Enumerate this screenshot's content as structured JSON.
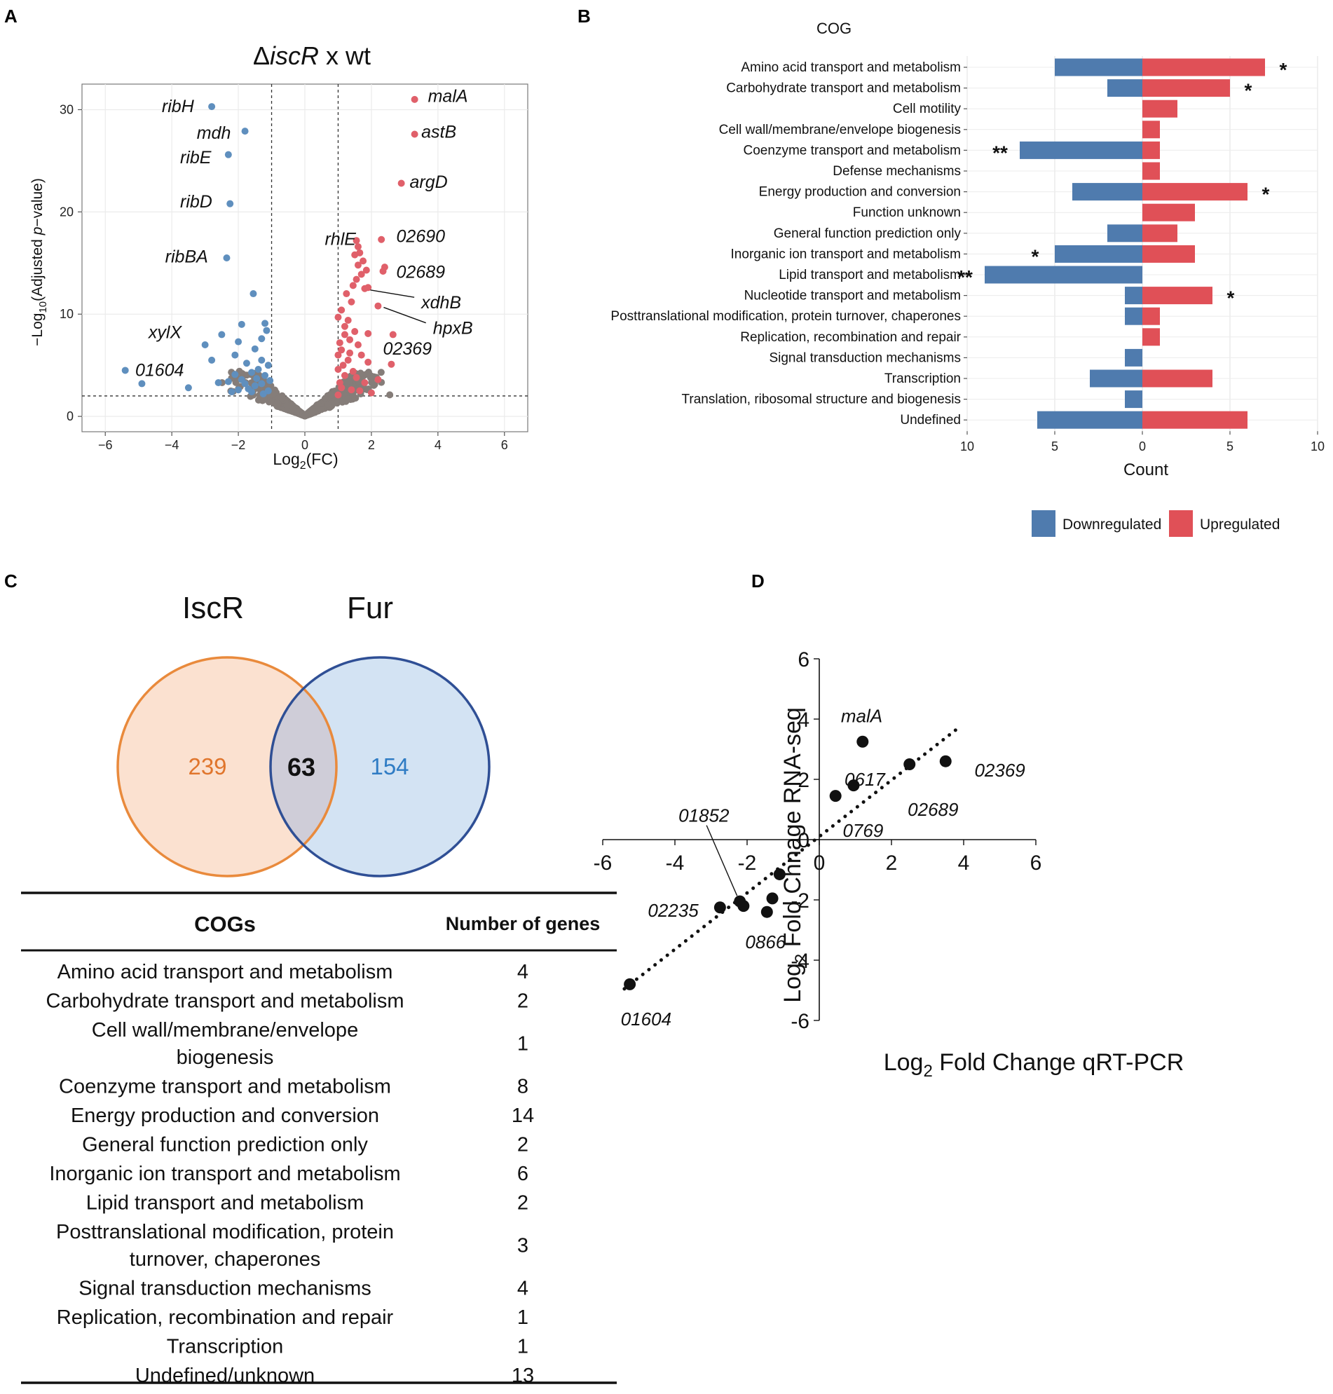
{
  "panels": {
    "A": "A",
    "B": "B",
    "C": "C",
    "D": "D"
  },
  "chart_data": [
    {
      "id": "A",
      "type": "scatter",
      "title_delta": "Δ",
      "title_gene": "iscR",
      "title_rest": " x wt",
      "xlabel_pre": "Log",
      "xlabel_sub": "2",
      "xlabel_post": "(FC)",
      "ylabel_pre": "−Log",
      "ylabel_sub": "10",
      "ylabel_mid": "(Adjusted ",
      "ylabel_it": "p",
      "ylabel_post": "−value)",
      "xlim": [
        -6.7,
        6.7
      ],
      "ylim": [
        -1.5,
        32.5
      ],
      "xticks": [
        -6,
        -4,
        -2,
        0,
        2,
        4,
        6
      ],
      "xtick_labels": [
        "−6",
        "−4",
        "−2",
        "0",
        "2",
        "4",
        "6"
      ],
      "yticks": [
        0,
        10,
        20,
        30
      ],
      "ytick_labels": [
        "0",
        "10",
        "20",
        "30"
      ],
      "fc_threshold": [
        -1,
        1
      ],
      "p_threshold": 2,
      "colors": {
        "down": "#5f8fbe",
        "up": "#e0606a",
        "ns": "#857d79"
      },
      "labeled_points": [
        {
          "gene": "ribH",
          "x": -2.8,
          "y": 30.3,
          "group": "down",
          "lx": -4.3,
          "ly": 30.3
        },
        {
          "gene": "mdh",
          "x": -1.8,
          "y": 27.9,
          "group": "down",
          "lx": -3.25,
          "ly": 27.7
        },
        {
          "gene": "ribE",
          "x": -2.3,
          "y": 25.6,
          "group": "down",
          "lx": -3.75,
          "ly": 25.3
        },
        {
          "gene": "ribD",
          "x": -2.25,
          "y": 20.8,
          "group": "down",
          "lx": -3.75,
          "ly": 21.0
        },
        {
          "gene": "ribBA",
          "x": -2.35,
          "y": 15.5,
          "group": "down",
          "lx": -4.2,
          "ly": 15.6
        },
        {
          "gene": "xylX",
          "x": -2.5,
          "y": 8.0,
          "group": "down",
          "lx": -4.7,
          "ly": 8.2
        },
        {
          "gene": "01604",
          "x": -5.4,
          "y": 4.5,
          "group": "down",
          "lx": -5.1,
          "ly": 4.5
        },
        {
          "gene": "malA",
          "x": 3.3,
          "y": 31.0,
          "group": "up",
          "lx": 3.7,
          "ly": 31.3
        },
        {
          "gene": "astB",
          "x": 3.3,
          "y": 27.6,
          "group": "up",
          "lx": 3.5,
          "ly": 27.8
        },
        {
          "gene": "argD",
          "x": 2.9,
          "y": 22.8,
          "group": "up",
          "lx": 3.15,
          "ly": 22.9
        },
        {
          "gene": "rhlE",
          "x": 1.55,
          "y": 17.2,
          "group": "up",
          "lx": 0.6,
          "ly": 17.3
        },
        {
          "gene": "02690",
          "x": 2.3,
          "y": 17.3,
          "group": "up",
          "lx": 2.75,
          "ly": 17.6
        },
        {
          "gene": "02689",
          "x": 2.4,
          "y": 14.6,
          "group": "up",
          "lx": 2.75,
          "ly": 14.1
        },
        {
          "gene": "xdhB",
          "x": 1.8,
          "y": 12.5,
          "group": "up",
          "lx": 3.5,
          "ly": 11.1,
          "arrow": true
        },
        {
          "gene": "hpxB",
          "x": 2.2,
          "y": 10.8,
          "group": "up",
          "lx": 3.85,
          "ly": 8.6,
          "arrow": true
        },
        {
          "gene": "02369",
          "x": 2.65,
          "y": 8.0,
          "group": "up",
          "lx": 2.35,
          "ly": 6.6
        }
      ],
      "down_points": [
        [
          -1.55,
          12
        ],
        [
          -1.2,
          9.1
        ],
        [
          -1.15,
          8.4
        ],
        [
          -1.3,
          7.6
        ],
        [
          -1.5,
          6.6
        ],
        [
          -1.3,
          5.5
        ],
        [
          -1.1,
          5.0
        ],
        [
          -1.4,
          4.6
        ],
        [
          -1.6,
          4.3
        ],
        [
          -1.2,
          4.0
        ],
        [
          -1.05,
          3.5
        ],
        [
          -1.3,
          3.2
        ],
        [
          -1.5,
          3.0
        ],
        [
          -1.7,
          2.7
        ],
        [
          -1.1,
          2.5
        ],
        [
          -1.25,
          2.2
        ],
        [
          -1.9,
          3.6
        ],
        [
          -2.1,
          4.1
        ],
        [
          -2.3,
          3.4
        ],
        [
          -2.0,
          2.6
        ],
        [
          -2.6,
          3.3
        ],
        [
          -2.8,
          5.5
        ],
        [
          -2.1,
          6.0
        ],
        [
          -1.9,
          9.0
        ],
        [
          -2.0,
          7.3
        ],
        [
          -3.0,
          7.0
        ],
        [
          -3.5,
          2.8
        ],
        [
          -4.9,
          3.2
        ],
        [
          -1.8,
          3.2
        ],
        [
          -1.6,
          2.4
        ],
        [
          -2.2,
          2.4
        ],
        [
          -1.75,
          5.2
        ],
        [
          -1.45,
          3.7
        ]
      ],
      "up_points": [
        [
          1.0,
          2.1
        ],
        [
          1.1,
          2.8
        ],
        [
          1.05,
          3.3
        ],
        [
          1.2,
          4.0
        ],
        [
          1.0,
          4.6
        ],
        [
          1.15,
          5.0
        ],
        [
          1.3,
          5.5
        ],
        [
          1.0,
          6.0
        ],
        [
          1.1,
          6.5
        ],
        [
          1.05,
          7.2
        ],
        [
          1.2,
          8.0
        ],
        [
          1.35,
          7.5
        ],
        [
          1.5,
          8.3
        ],
        [
          1.6,
          7.0
        ],
        [
          1.7,
          6.0
        ],
        [
          1.45,
          4.4
        ],
        [
          1.55,
          3.8
        ],
        [
          1.8,
          3.3
        ],
        [
          1.4,
          2.6
        ],
        [
          1.65,
          2.5
        ],
        [
          2.0,
          2.3
        ],
        [
          2.2,
          3.6
        ],
        [
          1.9,
          5.3
        ],
        [
          1.3,
          9.4
        ],
        [
          1.4,
          11.2
        ],
        [
          1.9,
          12.6
        ],
        [
          1.25,
          12.0
        ],
        [
          1.45,
          12.8
        ],
        [
          1.55,
          13.4
        ],
        [
          1.7,
          13.9
        ],
        [
          1.85,
          14.3
        ],
        [
          1.6,
          14.8
        ],
        [
          1.75,
          15.2
        ],
        [
          1.5,
          15.8
        ],
        [
          1.65,
          16.0
        ],
        [
          1.6,
          16.6
        ],
        [
          2.35,
          14.2
        ],
        [
          1.0,
          9.7
        ],
        [
          1.1,
          10.4
        ],
        [
          1.2,
          8.8
        ],
        [
          2.6,
          5.1
        ],
        [
          1.35,
          6.2
        ],
        [
          1.9,
          8.1
        ]
      ]
    },
    {
      "id": "B",
      "type": "bar",
      "title": "COG",
      "xlabel": "Count",
      "xlim": [
        -10,
        10
      ],
      "xticks": [
        -10,
        -5,
        0,
        5,
        10
      ],
      "xtick_labels": [
        "10",
        "5",
        "0",
        "5",
        "10"
      ],
      "categories": [
        "Amino acid transport and metabolism",
        "Carbohydrate transport and metabolism",
        "Cell motility",
        "Cell wall/membrane/envelope biogenesis",
        "Coenzyme transport and metabolism",
        "Defense mechanisms",
        "Energy production and conversion",
        "Function unknown",
        "General function prediction only",
        "Inorganic ion transport and metabolism",
        "Lipid transport and metabolism",
        "Nucleotide transport and metabolism",
        "Posttranslational modification, protein turnover, chaperones",
        "Replication, recombination and repair",
        "Signal transduction mechanisms",
        "Transcription",
        "Translation, ribosomal structure and biogenesis",
        "Undefined"
      ],
      "series": [
        {
          "name": "Downregulated",
          "color": "#4f7bae",
          "values": [
            5,
            2,
            0,
            0,
            7,
            0,
            4,
            0,
            2,
            5,
            9,
            1,
            1,
            0,
            1,
            3,
            1,
            6
          ]
        },
        {
          "name": "Upregulated",
          "color": "#e05057",
          "values": [
            7,
            5,
            2,
            1,
            1,
            1,
            6,
            3,
            2,
            3,
            0,
            4,
            1,
            1,
            0,
            4,
            0,
            6
          ]
        }
      ],
      "annotations": [
        {
          "category_index": 0,
          "side": "up",
          "text": "*"
        },
        {
          "category_index": 1,
          "side": "up",
          "text": "*"
        },
        {
          "category_index": 4,
          "side": "down",
          "text": "**"
        },
        {
          "category_index": 6,
          "side": "up",
          "text": "*"
        },
        {
          "category_index": 9,
          "side": "down",
          "text": "*"
        },
        {
          "category_index": 10,
          "side": "down",
          "text": "**"
        },
        {
          "category_index": 11,
          "side": "up",
          "text": "*"
        }
      ]
    },
    {
      "id": "D",
      "type": "scatter",
      "xlabel_pre": "Log",
      "xlabel_sub": "2",
      "xlabel_post": " Fold  Change qRT-PCR",
      "ylabel_pre": "Log",
      "ylabel_sub": "2",
      "ylabel_post": " Fold Chnage RNA-seq",
      "xlim": [
        -6,
        6
      ],
      "ylim": [
        -6,
        6
      ],
      "xticks": [
        -6,
        -4,
        -2,
        0,
        2,
        4,
        6
      ],
      "xtick_labels": [
        "-6",
        "-4",
        "-2",
        "0",
        "2",
        "4",
        "6"
      ],
      "yticks": [
        6,
        4,
        2,
        0,
        -2,
        -4,
        -6
      ],
      "ytick_labels": [
        "6",
        "4",
        "2",
        "0",
        "-2",
        "-4",
        "-6"
      ],
      "trendline": {
        "x0": -5.4,
        "y0": -4.95,
        "x1": 3.9,
        "y1": 3.75
      },
      "points": [
        {
          "label": "malA",
          "x": 1.2,
          "y": 3.25,
          "lx": 0.6,
          "ly": 4.1
        },
        {
          "label": "02369",
          "x": 3.5,
          "y": 2.6,
          "lx": 4.3,
          "ly": 2.3
        },
        {
          "label": "02689",
          "x": 2.5,
          "y": 2.5,
          "lx": 2.45,
          "ly": 1.0
        },
        {
          "label": "0617",
          "x": 0.95,
          "y": 1.8,
          "lx": 0.7,
          "ly": 2.0
        },
        {
          "label": "0769",
          "x": 0.45,
          "y": 1.45,
          "lx": 0.65,
          "ly": 0.3
        },
        {
          "label": "",
          "x": -1.1,
          "y": -1.15,
          "lx": 0,
          "ly": 0
        },
        {
          "label": "",
          "x": -1.3,
          "y": -1.95,
          "lx": 0,
          "ly": 0
        },
        {
          "label": "",
          "x": -1.45,
          "y": -2.4,
          "lx": 0,
          "ly": 0
        },
        {
          "label": "0866",
          "x": -2.1,
          "y": -2.2,
          "lx": -2.05,
          "ly": -3.4
        },
        {
          "label": "02235",
          "x": -2.75,
          "y": -2.25,
          "lx": -4.75,
          "ly": -2.35
        },
        {
          "label": "01604",
          "x": -5.25,
          "y": -4.8,
          "lx": -5.5,
          "ly": -5.95
        },
        {
          "label": "01852",
          "x": -2.2,
          "y": -2.05,
          "lx": -3.9,
          "ly": 0.8,
          "arrow": true
        }
      ]
    }
  ],
  "venn": {
    "left_label": "IscR",
    "right_label": "Fur",
    "left_only": "239",
    "overlap": "63",
    "right_only": "154",
    "left_color": "#e98a3c",
    "right_color": "#4a6aab"
  },
  "table": {
    "col1_header": "COGs",
    "col2_header": "Number of genes",
    "rows": [
      {
        "lines": [
          "Amino acid transport and metabolism"
        ],
        "count": "4"
      },
      {
        "lines": [
          "Carbohydrate transport and metabolism"
        ],
        "count": "2"
      },
      {
        "lines": [
          "Cell wall/membrane/envelope",
          "biogenesis"
        ],
        "count": "1"
      },
      {
        "lines": [
          "Coenzyme transport and metabolism"
        ],
        "count": "8"
      },
      {
        "lines": [
          "Energy production and conversion"
        ],
        "count": "14"
      },
      {
        "lines": [
          "General function prediction only"
        ],
        "count": "2"
      },
      {
        "lines": [
          "Inorganic ion transport and metabolism"
        ],
        "count": "6"
      },
      {
        "lines": [
          "Lipid transport and metabolism"
        ],
        "count": "2"
      },
      {
        "lines": [
          "Posttranslational modification, protein",
          "turnover, chaperones"
        ],
        "count": "3"
      },
      {
        "lines": [
          "Signal transduction mechanisms"
        ],
        "count": "4"
      },
      {
        "lines": [
          "Replication, recombination and repair"
        ],
        "count": "1"
      },
      {
        "lines": [
          "Transcription"
        ],
        "count": "1"
      },
      {
        "lines": [
          "Undefined/unknown"
        ],
        "count": "13"
      }
    ]
  }
}
